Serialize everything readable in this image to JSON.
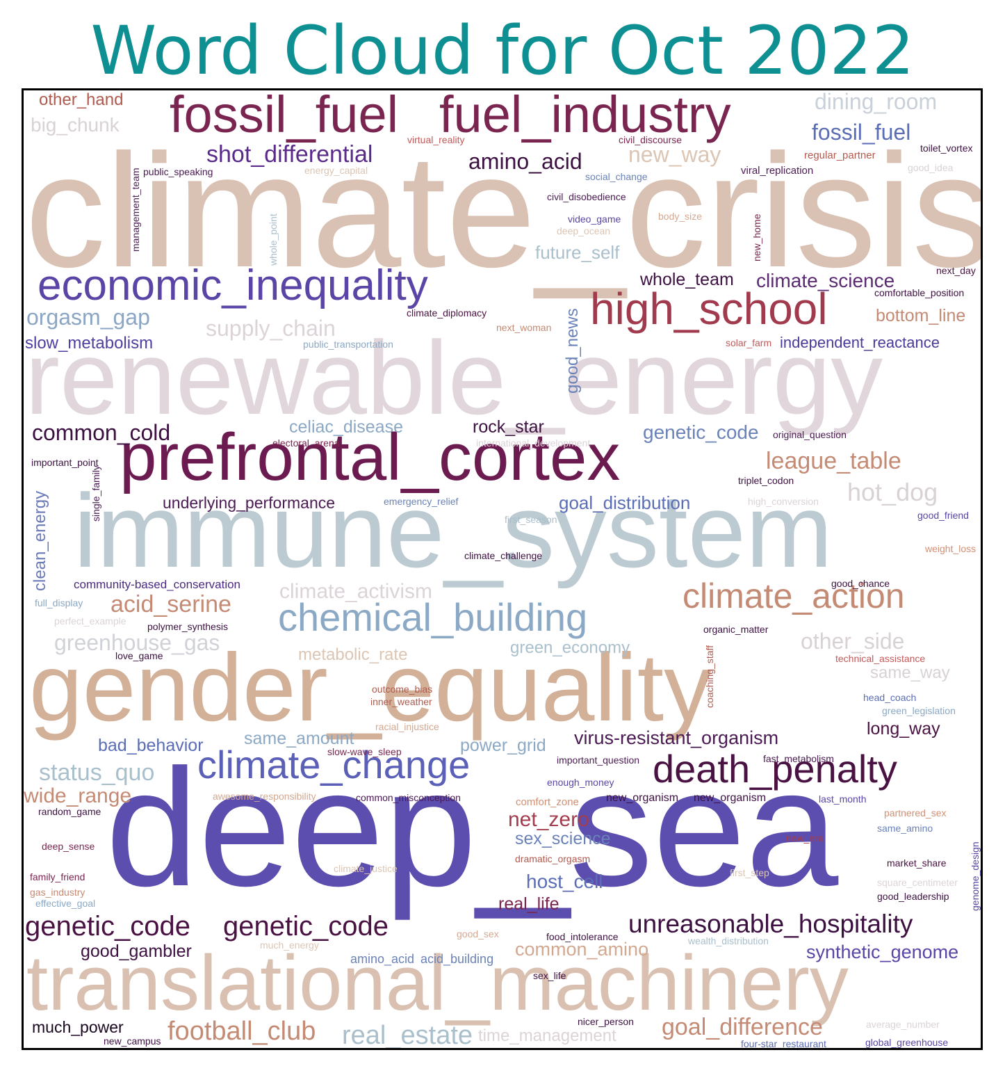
{
  "title": "Word Cloud for Oct 2022",
  "colors": {
    "title": "#0e8f92",
    "tan": "#d9c2b3",
    "pale": "#e0d6db",
    "lightblue": "#bccbd1",
    "purple": "#5b46a8",
    "maroon": "#7b2750",
    "darkplum": "#4a1242",
    "brick": "#a33c4e",
    "terracotta": "#c48a73",
    "steel": "#8ba8c4",
    "slate": "#5a6db5"
  },
  "words": [
    {
      "text": "climate_crisis",
      "color": "#d9c2b3"
    },
    {
      "text": "renewable_energy",
      "color": "#e0d6db"
    },
    {
      "text": "immune_system",
      "color": "#bccbd1"
    },
    {
      "text": "deep_sea",
      "color": "#5b4eae"
    },
    {
      "text": "gender_equality",
      "color": "#d3b098"
    },
    {
      "text": "translational_machinery",
      "color": "#d9c0b0"
    },
    {
      "text": "prefrontal_cortex",
      "color": "#6b1b4f"
    },
    {
      "text": "fossil_fuel",
      "color": "#7a2550"
    },
    {
      "text": "fuel_industry",
      "color": "#7a2550"
    },
    {
      "text": "economic_inequality",
      "color": "#5a45a6"
    },
    {
      "text": "high_school",
      "color": "#a13a4c"
    },
    {
      "text": "chemical_building",
      "color": "#8ba8c4"
    },
    {
      "text": "climate_change",
      "color": "#5a5fb8"
    },
    {
      "text": "death_penalty",
      "color": "#4a1242"
    },
    {
      "text": "climate_action",
      "color": "#c48a73"
    },
    {
      "text": "shot_differential",
      "color": "#5a2a8a"
    },
    {
      "text": "amino_acid",
      "color": "#3c1040"
    },
    {
      "text": "dining_room",
      "color": "#c8d0da"
    },
    {
      "text": "fossil_fuel",
      "color": "#5a6db5"
    },
    {
      "text": "new_way",
      "color": "#dcc5b3"
    },
    {
      "text": "other_hand",
      "color": "#b05a4e"
    },
    {
      "text": "big_chunk",
      "color": "#d8d2d6"
    },
    {
      "text": "orgasm_gap",
      "color": "#8ba6c4"
    },
    {
      "text": "slow_metabolism",
      "color": "#4e3fa0"
    },
    {
      "text": "supply_chain",
      "color": "#dcd3d8"
    },
    {
      "text": "whole_team",
      "color": "#3c1040"
    },
    {
      "text": "climate_science",
      "color": "#5a2a72"
    },
    {
      "text": "bottom_line",
      "color": "#c48a73"
    },
    {
      "text": "independent_reactance",
      "color": "#4b3a9a"
    },
    {
      "text": "future_self",
      "color": "#a9bfcc"
    },
    {
      "text": "good_news",
      "color": "#6a82b8"
    },
    {
      "text": "common_cold",
      "color": "#3c1040"
    },
    {
      "text": "celiac_disease",
      "color": "#8ba8c4"
    },
    {
      "text": "rock_star",
      "color": "#3c1040"
    },
    {
      "text": "genetic_code",
      "color": "#6a82b8"
    },
    {
      "text": "league_table",
      "color": "#c48a73"
    },
    {
      "text": "hot_dog",
      "color": "#d8d2d6"
    },
    {
      "text": "underlying_performance",
      "color": "#4a1a52"
    },
    {
      "text": "goal_distribution",
      "color": "#5a6db5"
    },
    {
      "text": "clean_energy",
      "color": "#6a7ab8"
    },
    {
      "text": "community-based_conservation",
      "color": "#4a2a80"
    },
    {
      "text": "climate_activism",
      "color": "#dcd3d8"
    },
    {
      "text": "acid_serine",
      "color": "#c48a73"
    },
    {
      "text": "greenhouse_gas",
      "color": "#d0d2d8"
    },
    {
      "text": "metabolic_rate",
      "color": "#dcc5b3"
    },
    {
      "text": "green_economy",
      "color": "#a9c0cc"
    },
    {
      "text": "other_side",
      "color": "#d8d2d6"
    },
    {
      "text": "same_way",
      "color": "#d8d2d6"
    },
    {
      "text": "bad_behavior",
      "color": "#5a6db5"
    },
    {
      "text": "same_amount",
      "color": "#8ba8c4"
    },
    {
      "text": "power_grid",
      "color": "#8ba8c4"
    },
    {
      "text": "virus-resistant_organism",
      "color": "#4a1a52"
    },
    {
      "text": "long_way",
      "color": "#4a1242"
    },
    {
      "text": "status_quo",
      "color": "#a9bfcc"
    },
    {
      "text": "wide_range",
      "color": "#c48a73"
    },
    {
      "text": "net_zero",
      "color": "#a33c4e"
    },
    {
      "text": "sex_science",
      "color": "#6a82b8"
    },
    {
      "text": "host_cell",
      "color": "#5a6db5"
    },
    {
      "text": "real_life",
      "color": "#7a2550"
    },
    {
      "text": "genetic_code",
      "color": "#4a1242"
    },
    {
      "text": "genetic_code",
      "color": "#4a1242"
    },
    {
      "text": "unreasonable_hospitality",
      "color": "#3c1040"
    },
    {
      "text": "good_gambler",
      "color": "#3c1040"
    },
    {
      "text": "common_amino",
      "color": "#d3a890"
    },
    {
      "text": "synthetic_genome",
      "color": "#5a45a6"
    },
    {
      "text": "much_power",
      "color": "#1a0820"
    },
    {
      "text": "football_club",
      "color": "#c48a73"
    },
    {
      "text": "real_estate",
      "color": "#a9bfcc"
    },
    {
      "text": "time_management",
      "color": "#dcd3d8"
    },
    {
      "text": "goal_difference",
      "color": "#c48a73"
    },
    {
      "text": "virtual_reality",
      "color": "#c25a5a"
    },
    {
      "text": "civil_discourse",
      "color": "#7a2550"
    },
    {
      "text": "regular_partner",
      "color": "#b05a4e"
    },
    {
      "text": "toilet_vortex",
      "color": "#3c1040"
    },
    {
      "text": "public_speaking",
      "color": "#4a1a52"
    },
    {
      "text": "energy_capital",
      "color": "#dcc5b3"
    },
    {
      "text": "social_change",
      "color": "#6a82b8"
    },
    {
      "text": "viral_replication",
      "color": "#4a1a52"
    },
    {
      "text": "good_idea",
      "color": "#d8d2d6"
    },
    {
      "text": "management_team",
      "color": "#4a1a52"
    },
    {
      "text": "whole_point",
      "color": "#a9bfcc"
    },
    {
      "text": "civil_disobedience",
      "color": "#4a1a52"
    },
    {
      "text": "video_game",
      "color": "#5a45a6"
    },
    {
      "text": "deep_ocean",
      "color": "#dcc5b3"
    },
    {
      "text": "body_size",
      "color": "#d3a890"
    },
    {
      "text": "new_home",
      "color": "#7a2550"
    },
    {
      "text": "next_day",
      "color": "#4a1242"
    },
    {
      "text": "comfortable_position",
      "color": "#3c1040"
    },
    {
      "text": "climate_diplomacy",
      "color": "#4a1242"
    },
    {
      "text": "next_woman",
      "color": "#c48a73"
    },
    {
      "text": "public_transportation",
      "color": "#8ba8c4"
    },
    {
      "text": "solar_farm",
      "color": "#c25a5a"
    },
    {
      "text": "electoral_arena",
      "color": "#7a2550"
    },
    {
      "text": "international_development",
      "color": "#dcd3d8"
    },
    {
      "text": "original_question",
      "color": "#4a1a52"
    },
    {
      "text": "important_point",
      "color": "#3c1040"
    },
    {
      "text": "single_family",
      "color": "#4a1a52"
    },
    {
      "text": "triplet_codon",
      "color": "#3c1040"
    },
    {
      "text": "emergency_relief",
      "color": "#6a82b8"
    },
    {
      "text": "high_conversion",
      "color": "#dcd3d8"
    },
    {
      "text": "first_season",
      "color": "#a9bfcc"
    },
    {
      "text": "good_friend",
      "color": "#5a45a6"
    },
    {
      "text": "weight_loss",
      "color": "#d38f73"
    },
    {
      "text": "climate_challenge",
      "color": "#3c1040"
    },
    {
      "text": "good_chance",
      "color": "#3c1040"
    },
    {
      "text": "full_display",
      "color": "#8ba8c4"
    },
    {
      "text": "perfect_example",
      "color": "#dcd3d8"
    },
    {
      "text": "polymer_synthesis",
      "color": "#3c1040"
    },
    {
      "text": "organic_matter",
      "color": "#3c1040"
    },
    {
      "text": "coaching_staff",
      "color": "#b05a4e"
    },
    {
      "text": "technical_assistance",
      "color": "#c25a5a"
    },
    {
      "text": "love_game",
      "color": "#3c1040"
    },
    {
      "text": "outcome_bias",
      "color": "#b05a4e"
    },
    {
      "text": "inner_weather",
      "color": "#b05a4e"
    },
    {
      "text": "head_coach",
      "color": "#5a6db5"
    },
    {
      "text": "green_legislation",
      "color": "#8ba8c4"
    },
    {
      "text": "racial_injustice",
      "color": "#d3a890"
    },
    {
      "text": "slow-wave_sleep",
      "color": "#7a2550"
    },
    {
      "text": "important_question",
      "color": "#4a1a52"
    },
    {
      "text": "fast_metabolism",
      "color": "#4a1a52"
    },
    {
      "text": "enough_money",
      "color": "#5a45a6"
    },
    {
      "text": "awesome_responsibility",
      "color": "#d3a890"
    },
    {
      "text": "common_misconception",
      "color": "#4a1a52"
    },
    {
      "text": "comfort_zone",
      "color": "#d38f73"
    },
    {
      "text": "new_organism",
      "color": "#3c1040"
    },
    {
      "text": "new_organism",
      "color": "#3c1040"
    },
    {
      "text": "last_month",
      "color": "#5a45a6"
    },
    {
      "text": "random_game",
      "color": "#3c1040"
    },
    {
      "text": "partnered_sex",
      "color": "#d38f73"
    },
    {
      "text": "same_amino",
      "color": "#6a82b8"
    },
    {
      "text": "deep_sense",
      "color": "#7a2550"
    },
    {
      "text": "new_era",
      "color": "#a33c4e"
    },
    {
      "text": "dramatic_orgasm",
      "color": "#b05a4e"
    },
    {
      "text": "family_friend",
      "color": "#7a2550"
    },
    {
      "text": "climate_justice",
      "color": "#dcc5b3"
    },
    {
      "text": "first_step",
      "color": "#dcc5b3"
    },
    {
      "text": "market_share",
      "color": "#4a1242"
    },
    {
      "text": "genome_design",
      "color": "#5a45a6"
    },
    {
      "text": "gas_industry",
      "color": "#c48a73"
    },
    {
      "text": "effective_goal",
      "color": "#8ba8c4"
    },
    {
      "text": "square_centimeter",
      "color": "#dcd3d8"
    },
    {
      "text": "good_leadership",
      "color": "#3c1040"
    },
    {
      "text": "good_sex",
      "color": "#d3a890"
    },
    {
      "text": "food_intolerance",
      "color": "#3c1040"
    },
    {
      "text": "wealth_distribution",
      "color": "#a9bfcc"
    },
    {
      "text": "much_energy",
      "color": "#dcc5b3"
    },
    {
      "text": "amino_acid",
      "color": "#6a82b8"
    },
    {
      "text": "acid_building",
      "color": "#6a82b8"
    },
    {
      "text": "sex_life",
      "color": "#3c1040"
    },
    {
      "text": "nicer_person",
      "color": "#3c1040"
    },
    {
      "text": "average_number",
      "color": "#dcd3d8"
    },
    {
      "text": "new_campus",
      "color": "#3c1040"
    },
    {
      "text": "four-star_restaurant",
      "color": "#5a6db5"
    },
    {
      "text": "global_greenhouse",
      "color": "#5a45a6"
    }
  ]
}
